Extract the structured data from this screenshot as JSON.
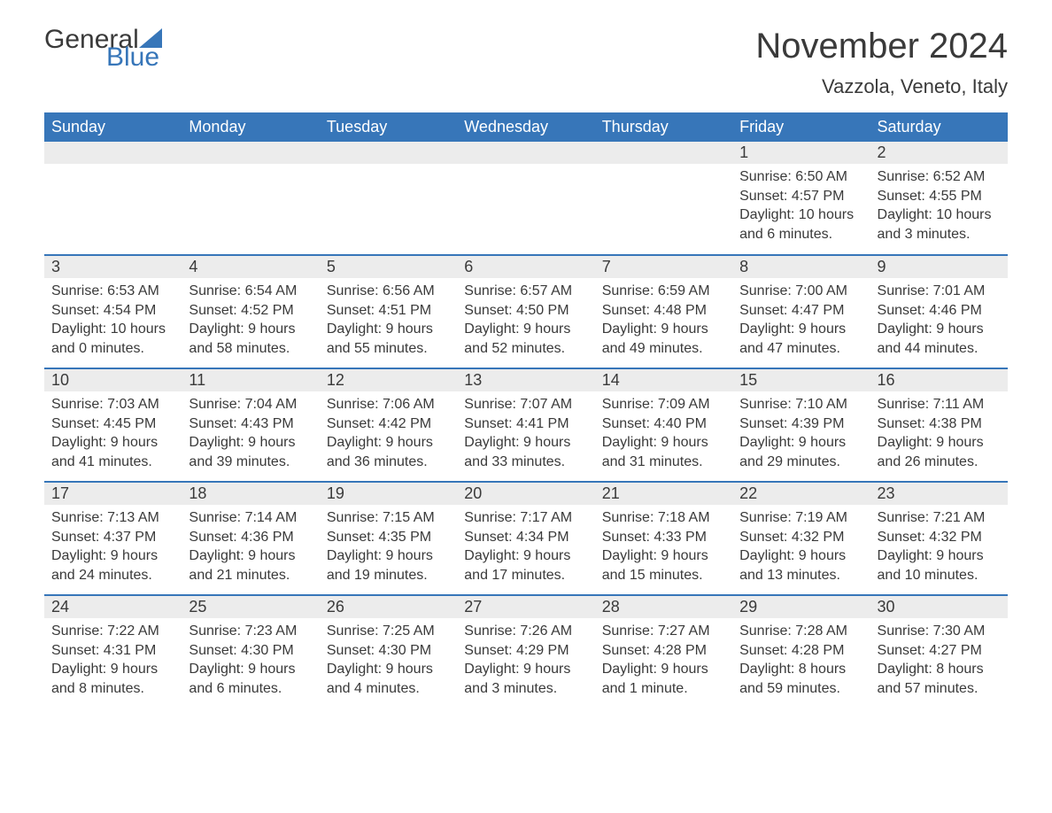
{
  "logo": {
    "text1": "General",
    "text2": "Blue",
    "brand_color": "#3776b9"
  },
  "title": "November 2024",
  "location": "Vazzola, Veneto, Italy",
  "colors": {
    "header_bg": "#3776b9",
    "header_text": "#ffffff",
    "daynum_bg": "#ececec",
    "row_divider": "#3776b9",
    "body_text": "#3a3a3a",
    "page_bg": "#ffffff"
  },
  "fonts": {
    "title_size": 40,
    "location_size": 22,
    "th_size": 18,
    "daynum_size": 18,
    "body_size": 16
  },
  "weekdays": [
    "Sunday",
    "Monday",
    "Tuesday",
    "Wednesday",
    "Thursday",
    "Friday",
    "Saturday"
  ],
  "weeks": [
    [
      {
        "blank": true
      },
      {
        "blank": true
      },
      {
        "blank": true
      },
      {
        "blank": true
      },
      {
        "blank": true
      },
      {
        "day": "1",
        "sunrise": "Sunrise: 6:50 AM",
        "sunset": "Sunset: 4:57 PM",
        "daylight1": "Daylight: 10 hours",
        "daylight2": "and 6 minutes."
      },
      {
        "day": "2",
        "sunrise": "Sunrise: 6:52 AM",
        "sunset": "Sunset: 4:55 PM",
        "daylight1": "Daylight: 10 hours",
        "daylight2": "and 3 minutes."
      }
    ],
    [
      {
        "day": "3",
        "sunrise": "Sunrise: 6:53 AM",
        "sunset": "Sunset: 4:54 PM",
        "daylight1": "Daylight: 10 hours",
        "daylight2": "and 0 minutes."
      },
      {
        "day": "4",
        "sunrise": "Sunrise: 6:54 AM",
        "sunset": "Sunset: 4:52 PM",
        "daylight1": "Daylight: 9 hours",
        "daylight2": "and 58 minutes."
      },
      {
        "day": "5",
        "sunrise": "Sunrise: 6:56 AM",
        "sunset": "Sunset: 4:51 PM",
        "daylight1": "Daylight: 9 hours",
        "daylight2": "and 55 minutes."
      },
      {
        "day": "6",
        "sunrise": "Sunrise: 6:57 AM",
        "sunset": "Sunset: 4:50 PM",
        "daylight1": "Daylight: 9 hours",
        "daylight2": "and 52 minutes."
      },
      {
        "day": "7",
        "sunrise": "Sunrise: 6:59 AM",
        "sunset": "Sunset: 4:48 PM",
        "daylight1": "Daylight: 9 hours",
        "daylight2": "and 49 minutes."
      },
      {
        "day": "8",
        "sunrise": "Sunrise: 7:00 AM",
        "sunset": "Sunset: 4:47 PM",
        "daylight1": "Daylight: 9 hours",
        "daylight2": "and 47 minutes."
      },
      {
        "day": "9",
        "sunrise": "Sunrise: 7:01 AM",
        "sunset": "Sunset: 4:46 PM",
        "daylight1": "Daylight: 9 hours",
        "daylight2": "and 44 minutes."
      }
    ],
    [
      {
        "day": "10",
        "sunrise": "Sunrise: 7:03 AM",
        "sunset": "Sunset: 4:45 PM",
        "daylight1": "Daylight: 9 hours",
        "daylight2": "and 41 minutes."
      },
      {
        "day": "11",
        "sunrise": "Sunrise: 7:04 AM",
        "sunset": "Sunset: 4:43 PM",
        "daylight1": "Daylight: 9 hours",
        "daylight2": "and 39 minutes."
      },
      {
        "day": "12",
        "sunrise": "Sunrise: 7:06 AM",
        "sunset": "Sunset: 4:42 PM",
        "daylight1": "Daylight: 9 hours",
        "daylight2": "and 36 minutes."
      },
      {
        "day": "13",
        "sunrise": "Sunrise: 7:07 AM",
        "sunset": "Sunset: 4:41 PM",
        "daylight1": "Daylight: 9 hours",
        "daylight2": "and 33 minutes."
      },
      {
        "day": "14",
        "sunrise": "Sunrise: 7:09 AM",
        "sunset": "Sunset: 4:40 PM",
        "daylight1": "Daylight: 9 hours",
        "daylight2": "and 31 minutes."
      },
      {
        "day": "15",
        "sunrise": "Sunrise: 7:10 AM",
        "sunset": "Sunset: 4:39 PM",
        "daylight1": "Daylight: 9 hours",
        "daylight2": "and 29 minutes."
      },
      {
        "day": "16",
        "sunrise": "Sunrise: 7:11 AM",
        "sunset": "Sunset: 4:38 PM",
        "daylight1": "Daylight: 9 hours",
        "daylight2": "and 26 minutes."
      }
    ],
    [
      {
        "day": "17",
        "sunrise": "Sunrise: 7:13 AM",
        "sunset": "Sunset: 4:37 PM",
        "daylight1": "Daylight: 9 hours",
        "daylight2": "and 24 minutes."
      },
      {
        "day": "18",
        "sunrise": "Sunrise: 7:14 AM",
        "sunset": "Sunset: 4:36 PM",
        "daylight1": "Daylight: 9 hours",
        "daylight2": "and 21 minutes."
      },
      {
        "day": "19",
        "sunrise": "Sunrise: 7:15 AM",
        "sunset": "Sunset: 4:35 PM",
        "daylight1": "Daylight: 9 hours",
        "daylight2": "and 19 minutes."
      },
      {
        "day": "20",
        "sunrise": "Sunrise: 7:17 AM",
        "sunset": "Sunset: 4:34 PM",
        "daylight1": "Daylight: 9 hours",
        "daylight2": "and 17 minutes."
      },
      {
        "day": "21",
        "sunrise": "Sunrise: 7:18 AM",
        "sunset": "Sunset: 4:33 PM",
        "daylight1": "Daylight: 9 hours",
        "daylight2": "and 15 minutes."
      },
      {
        "day": "22",
        "sunrise": "Sunrise: 7:19 AM",
        "sunset": "Sunset: 4:32 PM",
        "daylight1": "Daylight: 9 hours",
        "daylight2": "and 13 minutes."
      },
      {
        "day": "23",
        "sunrise": "Sunrise: 7:21 AM",
        "sunset": "Sunset: 4:32 PM",
        "daylight1": "Daylight: 9 hours",
        "daylight2": "and 10 minutes."
      }
    ],
    [
      {
        "day": "24",
        "sunrise": "Sunrise: 7:22 AM",
        "sunset": "Sunset: 4:31 PM",
        "daylight1": "Daylight: 9 hours",
        "daylight2": "and 8 minutes."
      },
      {
        "day": "25",
        "sunrise": "Sunrise: 7:23 AM",
        "sunset": "Sunset: 4:30 PM",
        "daylight1": "Daylight: 9 hours",
        "daylight2": "and 6 minutes."
      },
      {
        "day": "26",
        "sunrise": "Sunrise: 7:25 AM",
        "sunset": "Sunset: 4:30 PM",
        "daylight1": "Daylight: 9 hours",
        "daylight2": "and 4 minutes."
      },
      {
        "day": "27",
        "sunrise": "Sunrise: 7:26 AM",
        "sunset": "Sunset: 4:29 PM",
        "daylight1": "Daylight: 9 hours",
        "daylight2": "and 3 minutes."
      },
      {
        "day": "28",
        "sunrise": "Sunrise: 7:27 AM",
        "sunset": "Sunset: 4:28 PM",
        "daylight1": "Daylight: 9 hours",
        "daylight2": "and 1 minute."
      },
      {
        "day": "29",
        "sunrise": "Sunrise: 7:28 AM",
        "sunset": "Sunset: 4:28 PM",
        "daylight1": "Daylight: 8 hours",
        "daylight2": "and 59 minutes."
      },
      {
        "day": "30",
        "sunrise": "Sunrise: 7:30 AM",
        "sunset": "Sunset: 4:27 PM",
        "daylight1": "Daylight: 8 hours",
        "daylight2": "and 57 minutes."
      }
    ]
  ]
}
